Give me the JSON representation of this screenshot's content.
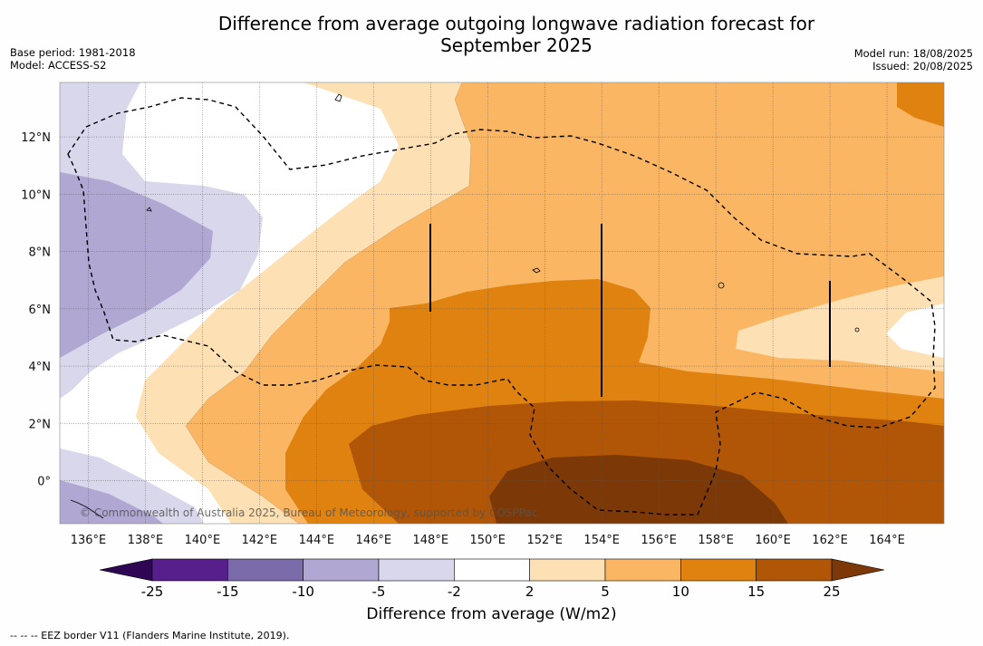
{
  "title": {
    "line1": "Difference from average outgoing longwave radiation forecast for",
    "line2": "September 2025"
  },
  "meta_left": {
    "base_period": "Base period: 1981-2018",
    "model": "Model: ACCESS-S2"
  },
  "meta_right": {
    "model_run": "Model run: 18/08/2025",
    "issued": "Issued: 20/08/2025"
  },
  "map": {
    "lon_labels": [
      "136°E",
      "138°E",
      "140°E",
      "142°E",
      "144°E",
      "146°E",
      "148°E",
      "150°E",
      "152°E",
      "154°E",
      "156°E",
      "158°E",
      "160°E",
      "162°E",
      "164°E"
    ],
    "lat_labels": [
      "12°N",
      "10°N",
      "8°N",
      "6°N",
      "4°N",
      "2°N",
      "0°"
    ],
    "lon_range": [
      135.0,
      166.0
    ],
    "lat_range": [
      -1.5,
      13.9
    ],
    "gridlines": true,
    "copyright": "© Commonwealth of Australia 2025, Bureau of Meteorology, supported by COSPPac"
  },
  "colorbar": {
    "ticks": [
      "-25",
      "-15",
      "-10",
      "-5",
      "-2",
      "2",
      "5",
      "10",
      "15",
      "25"
    ],
    "colors": [
      "#561f8c",
      "#7b6bab",
      "#b0a7d3",
      "#d8d7eb",
      "#ffffff",
      "#fde0b4",
      "#fab663",
      "#e0820f",
      "#b05606"
    ],
    "extend_low_color": "#2e0653",
    "extend_high_color": "#7c3907",
    "label": "Difference from average (W/m2)"
  },
  "footer": "--  --  -- EEZ border V11 (Flanders Marine Institute, 2019)."
}
